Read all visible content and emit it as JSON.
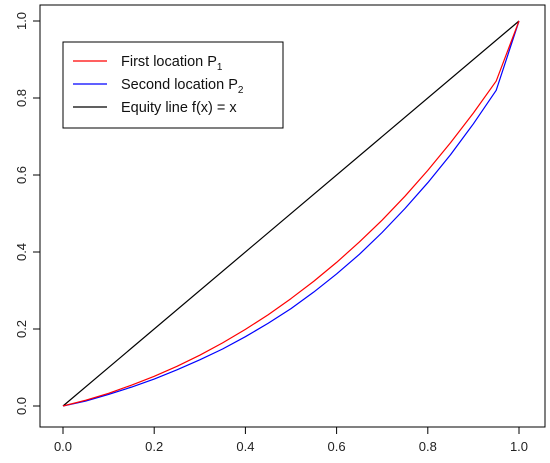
{
  "chart_data": {
    "type": "line",
    "title": "",
    "xlabel": "",
    "ylabel": "",
    "xlim": [
      0,
      1
    ],
    "ylim": [
      0,
      1
    ],
    "xticks": [
      "0.0",
      "0.2",
      "0.4",
      "0.6",
      "0.8",
      "1.0"
    ],
    "yticks": [
      "0.0",
      "0.2",
      "0.4",
      "0.6",
      "0.8",
      "1.0"
    ],
    "grid": false,
    "legend_position": "top-left",
    "series": [
      {
        "name": "First location P",
        "subscript": "1",
        "color": "#ff0000",
        "x": [
          0,
          0.05,
          0.1,
          0.15,
          0.2,
          0.25,
          0.3,
          0.35,
          0.4,
          0.45,
          0.5,
          0.55,
          0.6,
          0.65,
          0.7,
          0.75,
          0.8,
          0.85,
          0.9,
          0.95,
          1.0
        ],
        "y": [
          0,
          0.015,
          0.033,
          0.054,
          0.077,
          0.103,
          0.132,
          0.164,
          0.199,
          0.237,
          0.279,
          0.324,
          0.373,
          0.426,
          0.483,
          0.545,
          0.612,
          0.684,
          0.761,
          0.844,
          1.0
        ]
      },
      {
        "name": "Second location P",
        "subscript": "2",
        "color": "#0000ff",
        "x": [
          0,
          0.05,
          0.1,
          0.15,
          0.2,
          0.25,
          0.3,
          0.35,
          0.4,
          0.45,
          0.5,
          0.55,
          0.6,
          0.65,
          0.7,
          0.75,
          0.8,
          0.85,
          0.9,
          0.95,
          1.0
        ],
        "y": [
          0,
          0.013,
          0.03,
          0.049,
          0.07,
          0.094,
          0.12,
          0.148,
          0.18,
          0.215,
          0.253,
          0.296,
          0.343,
          0.394,
          0.451,
          0.513,
          0.58,
          0.653,
          0.733,
          0.82,
          1.0
        ]
      },
      {
        "name": "Equity line f(x) = x",
        "color": "#000000",
        "x": [
          0,
          1
        ],
        "y": [
          0,
          1
        ]
      }
    ]
  }
}
